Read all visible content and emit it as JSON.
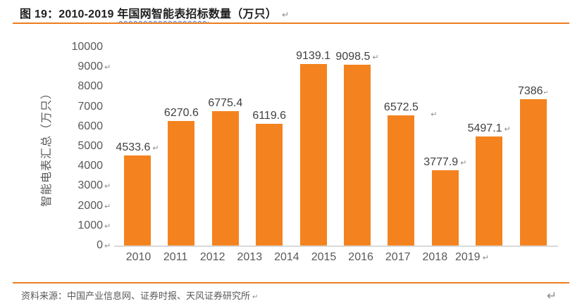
{
  "title": {
    "prefix": "图 19：",
    "range": "2010-2019 ",
    "squiggle": "年国网智能表招标",
    "rest": "数量（万只）"
  },
  "marks": {
    "return": "↵"
  },
  "source": {
    "label": "资料来源：",
    "text": "中国产业信息网、证券时报、天风证券研究所"
  },
  "colors": {
    "bar": "#F4831F",
    "rule": "#ED7D1E",
    "axis_label": "#595959",
    "data_label": "#404040",
    "axis_line": "#D9D9D9",
    "mark": "#8C8C8C",
    "squiggle": "#3B6FE0"
  },
  "chart_data": {
    "type": "bar",
    "title": "图 19：2010-2019 年国网智能表招标数量（万只）",
    "categories": [
      "2010",
      "2011",
      "2012",
      "2013",
      "2014",
      "2015",
      "2016",
      "2017",
      "2018",
      "2019"
    ],
    "values": [
      4533.6,
      6270.6,
      6775.4,
      6119.6,
      9139.1,
      9098.5,
      6572.5,
      3777.9,
      5497.1,
      7386
    ],
    "value_labels": [
      "4533.6",
      "6270.6",
      "6775.4",
      "6119.6",
      "9139.1",
      "9098.5",
      "6572.5",
      "3777.9",
      "5497.1",
      "7386"
    ],
    "value_label_marks": [
      "inline",
      "none",
      "none",
      "none",
      "none",
      "inline",
      "below",
      "inline",
      "inline",
      "tiny"
    ],
    "xlabel": "",
    "ylabel": "智能电表汇总（万只）",
    "ylim": [
      0,
      10000
    ],
    "ytick_step": 1000,
    "yticks_with_mark": [
      "9000",
      "3000",
      "2000",
      "1000",
      "0"
    ],
    "xtick_mark_last": true,
    "grid": false,
    "legend": false
  }
}
